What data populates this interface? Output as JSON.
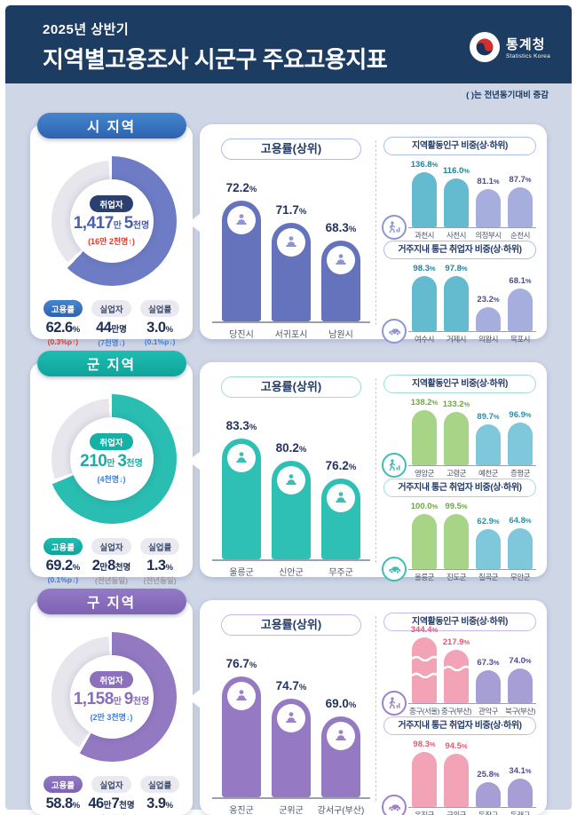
{
  "header": {
    "period": "2025년 상반기",
    "title": "지역별고용조사 시군구 주요고용지표",
    "agency": "통계청",
    "agency_en": "Statistics Korea"
  },
  "note": "( )는 전년동기대비 증감",
  "units": {
    "percent": "%"
  },
  "sections": [
    {
      "name": "시 지역",
      "theme": {
        "badge": "#4585cd",
        "badge2": "#2d63b2",
        "donut": "#6e7cc5",
        "emp": "#2b4070",
        "num": "#4a5fb0",
        "mainbar": "#6573bd",
        "hi": "#64bace",
        "hival": "#20829b",
        "lo": "#a6aedd",
        "loval": "#4a4f87",
        "pillborder": "#a9bfe8",
        "iconc": "#8d96d4"
      },
      "donut": {
        "pct": 62.6,
        "label": "취업자",
        "value_parts": [
          {
            "t": "1,417",
            "b": 1
          },
          {
            "t": "만 ",
            "b": 0
          },
          {
            "t": "5",
            "b": 1
          },
          {
            "t": "천명",
            "b": 0
          }
        ],
        "change": {
          "text": "(16만 2천명↑)",
          "dir": "up"
        }
      },
      "stats": [
        {
          "label": "고용률",
          "value_parts": [
            {
              "t": "62.6",
              "b": 1
            },
            {
              "t": "%",
              "b": 0
            }
          ],
          "change": {
            "text": "(0.3%p↑)",
            "dir": "up"
          }
        },
        {
          "label": "실업자",
          "value_parts": [
            {
              "t": "44",
              "b": 1
            },
            {
              "t": "만명",
              "b": 0
            }
          ],
          "change": {
            "text": "(7천명↓)",
            "dir": "down"
          }
        },
        {
          "label": "실업률",
          "value_parts": [
            {
              "t": "3.0",
              "b": 1
            },
            {
              "t": "%",
              "b": 0
            }
          ],
          "change": {
            "text": "(0.1%p↓)",
            "dir": "down"
          }
        }
      ],
      "top_chart": {
        "title": "고용률(상위)",
        "bars": [
          {
            "label": "당진시",
            "value": "72.2"
          },
          {
            "label": "서귀포시",
            "value": "71.7"
          },
          {
            "label": "남원시",
            "value": "68.3"
          }
        ]
      },
      "panels": [
        {
          "title": "지역활동인구 비중(상·하위)",
          "icon": "walking-person-icon",
          "bars": [
            {
              "label": "과천시",
              "value": "136.8",
              "group": "hi"
            },
            {
              "label": "사천시",
              "value": "116.0",
              "group": "hi"
            },
            {
              "label": "의정부시",
              "value": "81.1",
              "group": "lo"
            },
            {
              "label": "순천시",
              "value": "87.7",
              "group": "lo"
            }
          ]
        },
        {
          "title": "거주지내 통근 취업자 비중(상·하위)",
          "icon": "car-icon",
          "bars": [
            {
              "label": "여수시",
              "value": "98.3",
              "group": "hi"
            },
            {
              "label": "거제시",
              "value": "97.8",
              "group": "hi"
            },
            {
              "label": "의왕시",
              "value": "23.2",
              "group": "lo"
            },
            {
              "label": "목포시",
              "value": "68.1",
              "group": "lo"
            }
          ]
        }
      ]
    },
    {
      "name": "군 지역",
      "theme": {
        "badge": "#1fbcb1",
        "badge2": "#0fa49b",
        "donut": "#2abdb2",
        "emp": "#14b1a7",
        "num": "#13b0a5",
        "mainbar": "#2fc0b5",
        "hi": "#a8d487",
        "hival": "#6fa743",
        "lo": "#7fc7da",
        "loval": "#2e8fa6",
        "pillborder": "#9fdcd6",
        "iconc": "#3dbdb3"
      },
      "donut": {
        "pct": 69.2,
        "label": "취업자",
        "value_parts": [
          {
            "t": "210",
            "b": 1
          },
          {
            "t": "만 ",
            "b": 0
          },
          {
            "t": "3",
            "b": 1
          },
          {
            "t": "천명",
            "b": 0
          }
        ],
        "change": {
          "text": "(4천명↓)",
          "dir": "down"
        }
      },
      "stats": [
        {
          "label": "고용률",
          "value_parts": [
            {
              "t": "69.2",
              "b": 1
            },
            {
              "t": "%",
              "b": 0
            }
          ],
          "change": {
            "text": "(0.1%p↓)",
            "dir": "down"
          }
        },
        {
          "label": "실업자",
          "value_parts": [
            {
              "t": "2",
              "b": 1
            },
            {
              "t": "만",
              "b": 0
            },
            {
              "t": "8",
              "b": 1
            },
            {
              "t": "천명",
              "b": 0
            }
          ],
          "change": {
            "text": "(전년동일)",
            "dir": "same"
          }
        },
        {
          "label": "실업률",
          "value_parts": [
            {
              "t": "1.3",
              "b": 1
            },
            {
              "t": "%",
              "b": 0
            }
          ],
          "change": {
            "text": "(전년동일)",
            "dir": "same"
          }
        }
      ],
      "top_chart": {
        "title": "고용률(상위)",
        "bars": [
          {
            "label": "울릉군",
            "value": "83.3"
          },
          {
            "label": "신안군",
            "value": "80.2"
          },
          {
            "label": "무주군",
            "value": "76.2"
          }
        ]
      },
      "panels": [
        {
          "title": "지역활동인구 비중(상·하위)",
          "icon": "walking-person-icon",
          "bars": [
            {
              "label": "영암군",
              "value": "138.2",
              "group": "hi"
            },
            {
              "label": "고령군",
              "value": "133.2",
              "group": "hi"
            },
            {
              "label": "예천군",
              "value": "89.7",
              "group": "lo"
            },
            {
              "label": "증평군",
              "value": "96.9",
              "group": "lo"
            }
          ]
        },
        {
          "title": "거주지내 통근 취업자 비중(상·하위)",
          "icon": "car-icon",
          "bars": [
            {
              "label": "울릉군",
              "value": "100.0",
              "group": "hi"
            },
            {
              "label": "진도군",
              "value": "99.5",
              "group": "hi"
            },
            {
              "label": "칠곡군",
              "value": "62.9",
              "group": "lo"
            },
            {
              "label": "무안군",
              "value": "64.8",
              "group": "lo"
            }
          ]
        }
      ]
    },
    {
      "name": "구 지역",
      "theme": {
        "badge": "#9379c5",
        "badge2": "#7e62b4",
        "donut": "#9379c2",
        "emp": "#8a70bd",
        "num": "#8a6cbe",
        "mainbar": "#9579c3",
        "hi": "#f2a3b6",
        "hival": "#e05a74",
        "lo": "#a79ed6",
        "loval": "#57488f",
        "pillborder": "#c8b9e4",
        "iconc": "#9c82c9"
      },
      "donut": {
        "pct": 58.8,
        "label": "취업자",
        "value_parts": [
          {
            "t": "1,158",
            "b": 1
          },
          {
            "t": "만 ",
            "b": 0
          },
          {
            "t": "9",
            "b": 1
          },
          {
            "t": "천명",
            "b": 0
          }
        ],
        "change": {
          "text": "(2만 3천명↓)",
          "dir": "down"
        }
      },
      "stats": [
        {
          "label": "고용률",
          "value_parts": [
            {
              "t": "58.8",
              "b": 1
            },
            {
              "t": "%",
              "b": 0
            }
          ],
          "change": {
            "text": "(0.2%p↓)",
            "dir": "down"
          }
        },
        {
          "label": "실업자",
          "value_parts": [
            {
              "t": "46",
              "b": 1
            },
            {
              "t": "만",
              "b": 0
            },
            {
              "t": "7",
              "b": 1
            },
            {
              "t": "천명",
              "b": 0
            }
          ],
          "change": {
            "text": "(1만 6천명↓)",
            "dir": "down"
          }
        },
        {
          "label": "실업률",
          "value_parts": [
            {
              "t": "3.9",
              "b": 1
            },
            {
              "t": "%",
              "b": 0
            }
          ],
          "change": {
            "text": "(0.1%p↓)",
            "dir": "down"
          }
        }
      ],
      "top_chart": {
        "title": "고용률(상위)",
        "bars": [
          {
            "label": "옹진군",
            "value": "76.7"
          },
          {
            "label": "군위군",
            "value": "74.7"
          },
          {
            "label": "강서구(부산)",
            "value": "69.0"
          }
        ]
      },
      "panels": [
        {
          "title": "지역활동인구 비중(상·하위)",
          "icon": "walking-person-icon",
          "bars": [
            {
              "label": "중구(서울)",
              "value": "344.4",
              "group": "hi"
            },
            {
              "label": "중구(부산)",
              "value": "217.9",
              "group": "hi"
            },
            {
              "label": "관악구",
              "value": "67.3",
              "group": "lo"
            },
            {
              "label": "북구(부산)",
              "value": "74.0",
              "group": "lo"
            }
          ]
        },
        {
          "title": "거주지내 통근 취업자 비중(상·하위)",
          "icon": "car-icon",
          "bars": [
            {
              "label": "옹진군",
              "value": "98.3",
              "group": "hi"
            },
            {
              "label": "군위군",
              "value": "94.5",
              "group": "hi"
            },
            {
              "label": "동작구",
              "value": "25.8",
              "group": "lo"
            },
            {
              "label": "동래구",
              "value": "34.1",
              "group": "lo"
            }
          ]
        }
      ]
    }
  ],
  "chart_data": [
    {
      "type": "donut",
      "title": "시 지역 고용률",
      "value": 62.6,
      "unit": "%",
      "annotation": "취업자 1,417만 5천명 (16만 2천명↑), 실업자 44만명 (7천명↓), 실업률 3.0% (0.1%p↓)"
    },
    {
      "type": "bar",
      "title": "시 지역 고용률(상위)",
      "categories": [
        "당진시",
        "서귀포시",
        "남원시"
      ],
      "values": [
        72.2,
        71.7,
        68.3
      ],
      "unit": "%"
    },
    {
      "type": "bar",
      "title": "시 지역 지역활동인구 비중(상·하위)",
      "categories": [
        "과천시",
        "사천시",
        "의정부시",
        "순천시"
      ],
      "values": [
        136.8,
        116.0,
        81.1,
        87.7
      ],
      "unit": "%"
    },
    {
      "type": "bar",
      "title": "시 지역 거주지내 통근 취업자 비중(상·하위)",
      "categories": [
        "여수시",
        "거제시",
        "의왕시",
        "목포시"
      ],
      "values": [
        98.3,
        97.8,
        23.2,
        68.1
      ],
      "unit": "%"
    },
    {
      "type": "donut",
      "title": "군 지역 고용률",
      "value": 69.2,
      "unit": "%",
      "annotation": "취업자 210만 3천명 (4천명↓), 실업자 2만8천명 (전년동일), 실업률 1.3% (전년동일)"
    },
    {
      "type": "bar",
      "title": "군 지역 고용률(상위)",
      "categories": [
        "울릉군",
        "신안군",
        "무주군"
      ],
      "values": [
        83.3,
        80.2,
        76.2
      ],
      "unit": "%"
    },
    {
      "type": "bar",
      "title": "군 지역 지역활동인구 비중(상·하위)",
      "categories": [
        "영암군",
        "고령군",
        "예천군",
        "증평군"
      ],
      "values": [
        138.2,
        133.2,
        89.7,
        96.9
      ],
      "unit": "%"
    },
    {
      "type": "bar",
      "title": "군 지역 거주지내 통근 취업자 비중(상·하위)",
      "categories": [
        "울릉군",
        "진도군",
        "칠곡군",
        "무안군"
      ],
      "values": [
        100.0,
        99.5,
        62.9,
        64.8
      ],
      "unit": "%"
    },
    {
      "type": "donut",
      "title": "구 지역 고용률",
      "value": 58.8,
      "unit": "%",
      "annotation": "취업자 1,158만 9천명 (2만 3천명↓), 실업자 46만7천명 (1만 6천명↓), 실업률 3.9% (0.1%p↓)"
    },
    {
      "type": "bar",
      "title": "구 지역 고용률(상위)",
      "categories": [
        "옹진군",
        "군위군",
        "강서구(부산)"
      ],
      "values": [
        76.7,
        74.7,
        69.0
      ],
      "unit": "%"
    },
    {
      "type": "bar",
      "title": "구 지역 지역활동인구 비중(상·하위)",
      "categories": [
        "중구(서울)",
        "중구(부산)",
        "관악구",
        "북구(부산)"
      ],
      "values": [
        344.4,
        217.9,
        67.3,
        74.0
      ],
      "unit": "%"
    },
    {
      "type": "bar",
      "title": "구 지역 거주지내 통근 취업자 비중(상·하위)",
      "categories": [
        "옹진군",
        "군위군",
        "동작구",
        "동래구"
      ],
      "values": [
        98.3,
        94.5,
        25.8,
        34.1
      ],
      "unit": "%"
    }
  ]
}
